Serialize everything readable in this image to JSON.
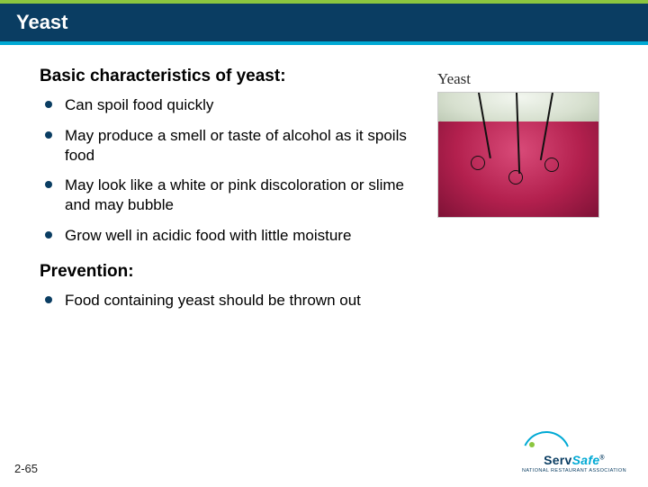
{
  "header": {
    "title": "Yeast",
    "accent_top_color": "#8cc63f",
    "bar_color": "#0a3d62",
    "underline_color": "#00a9d4"
  },
  "section1": {
    "heading": "Basic characteristics of yeast:",
    "bullets": [
      "Can spoil food quickly",
      "May produce a smell or taste of alcohol as it spoils food",
      "May look like a white or pink discoloration or slime and may bubble",
      "Grow well in acidic food with little moisture"
    ]
  },
  "section2": {
    "heading": "Prevention:",
    "bullets": [
      "Food containing yeast should be thrown out"
    ]
  },
  "image": {
    "label": "Yeast",
    "description": "jar of red jam with yeast spots circled and indicator needles"
  },
  "footer": {
    "page_number": "2-65",
    "logo_brand_main": "Serv",
    "logo_brand_accent": "Safe",
    "logo_tagline": "NATIONAL RESTAURANT ASSOCIATION"
  },
  "typography": {
    "title_fontsize": 22,
    "subhead_fontsize": 19,
    "body_fontsize": 17
  }
}
